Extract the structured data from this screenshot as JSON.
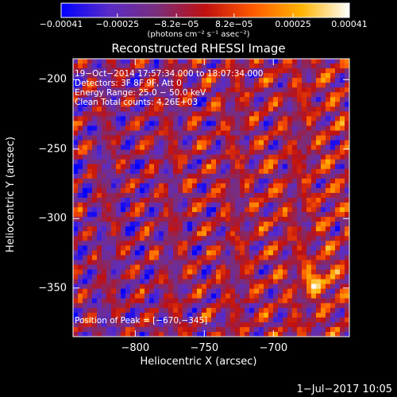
{
  "chart_data": {
    "type": "heatmap",
    "title": "Reconstructed RHESSI Image",
    "xlabel": "Heliocentric X (arcsec)",
    "ylabel": "Heliocentric Y (arcsec)",
    "xlim": [
      -845,
      -645
    ],
    "ylim": [
      -385,
      -185
    ],
    "x_ticks": [
      -800,
      -750,
      -700
    ],
    "x_tick_labels": [
      "−800",
      "−750",
      "−700"
    ],
    "y_ticks": [
      -200,
      -250,
      -300,
      -350
    ],
    "y_tick_labels": [
      "−200",
      "−250",
      "−300",
      "−350"
    ],
    "colorbar": {
      "range": [
        -0.00041,
        0.00041
      ],
      "tick_values": [
        -0.00041,
        -0.00025,
        -8.2e-05,
        8.2e-05,
        0.00025,
        0.00041
      ],
      "tick_labels": [
        "−0.00041",
        "−0.00025",
        "−8.2e−05",
        "8.2e−05",
        "0.00025",
        "0.00041"
      ],
      "units_label": "(photons cm⁻² s⁻¹ asec⁻²)",
      "colormap": [
        "#0000ff",
        "#5a2cc8",
        "#7a2d7a",
        "#c01010",
        "#ff5a00",
        "#ffb400",
        "#ffffff"
      ]
    },
    "annotations": {
      "time_range": "19−Oct−2014 17:57:34.000 to 18:07:34.000",
      "detectors": "Detectors: 3F 8F 9F, Att 0",
      "energy_range": "Energy Range: 25.0 − 50.0 keV",
      "clean_counts": "Clean     Total counts: 4.26E+03",
      "peak": "Position of Peak = [−670,−345]"
    },
    "peak_position": [
      -670,
      -345
    ],
    "grid": false
  },
  "footer": {
    "date_stamp": "1−Jul−2017 10:05"
  }
}
